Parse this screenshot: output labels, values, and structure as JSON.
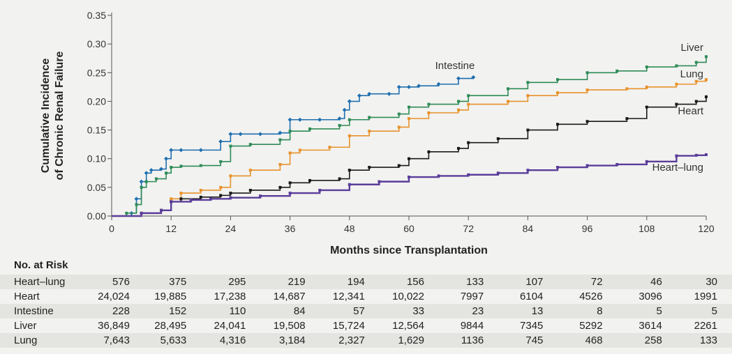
{
  "chart_data": {
    "type": "line",
    "ylabel_line1": "Cumulative Incidence",
    "ylabel_line2": "of Chronic Renal Failure",
    "xlabel": "Months since Transplantation",
    "xlim": [
      0,
      120
    ],
    "ylim": [
      0,
      0.35
    ],
    "x_ticks": [
      0,
      12,
      24,
      36,
      48,
      60,
      72,
      84,
      96,
      108,
      120
    ],
    "y_ticks": [
      "0.00",
      "0.05",
      "0.10",
      "0.15",
      "0.20",
      "0.25",
      "0.30",
      "0.35"
    ],
    "series": [
      {
        "name": "Intestine",
        "color": "#1f6fb0",
        "x": [
          0,
          4,
          5,
          6,
          7,
          8,
          10,
          11,
          12,
          14,
          18,
          22,
          24,
          26,
          30,
          34,
          36,
          38,
          42,
          46,
          47,
          48,
          50,
          52,
          56,
          58,
          60,
          62,
          66,
          70,
          73
        ],
        "y": [
          0,
          0.005,
          0.03,
          0.06,
          0.075,
          0.08,
          0.082,
          0.1,
          0.115,
          0.115,
          0.115,
          0.13,
          0.143,
          0.143,
          0.143,
          0.145,
          0.168,
          0.168,
          0.168,
          0.17,
          0.185,
          0.2,
          0.21,
          0.213,
          0.213,
          0.225,
          0.225,
          0.227,
          0.23,
          0.24,
          0.242
        ]
      },
      {
        "name": "Liver",
        "color": "#2e8b57",
        "x": [
          0,
          3,
          5,
          6,
          7,
          9,
          11,
          12,
          14,
          18,
          22,
          24,
          28,
          34,
          36,
          40,
          46,
          48,
          52,
          58,
          60,
          64,
          70,
          72,
          80,
          84,
          90,
          96,
          102,
          108,
          114,
          118,
          120
        ],
        "y": [
          0,
          0.005,
          0.02,
          0.05,
          0.06,
          0.065,
          0.075,
          0.085,
          0.087,
          0.088,
          0.095,
          0.122,
          0.125,
          0.133,
          0.148,
          0.152,
          0.158,
          0.168,
          0.172,
          0.178,
          0.19,
          0.195,
          0.2,
          0.21,
          0.222,
          0.233,
          0.238,
          0.25,
          0.253,
          0.26,
          0.262,
          0.268,
          0.278
        ]
      },
      {
        "name": "Lung",
        "color": "#e8922c",
        "x": [
          0,
          6,
          10,
          12,
          14,
          18,
          22,
          24,
          28,
          34,
          36,
          38,
          44,
          48,
          52,
          58,
          60,
          64,
          70,
          72,
          80,
          84,
          90,
          96,
          104,
          108,
          114,
          118,
          120
        ],
        "y": [
          0,
          0.005,
          0.01,
          0.03,
          0.04,
          0.045,
          0.05,
          0.07,
          0.08,
          0.09,
          0.11,
          0.115,
          0.12,
          0.14,
          0.148,
          0.155,
          0.17,
          0.18,
          0.185,
          0.195,
          0.2,
          0.21,
          0.215,
          0.22,
          0.222,
          0.225,
          0.23,
          0.235,
          0.238
        ]
      },
      {
        "name": "Heart",
        "color": "#1a1a1a",
        "x": [
          0,
          6,
          10,
          12,
          14,
          18,
          22,
          24,
          28,
          34,
          36,
          40,
          46,
          48,
          52,
          58,
          60,
          64,
          70,
          72,
          78,
          84,
          90,
          96,
          104,
          108,
          114,
          118,
          120
        ],
        "y": [
          0,
          0.005,
          0.01,
          0.025,
          0.03,
          0.033,
          0.036,
          0.04,
          0.045,
          0.05,
          0.058,
          0.062,
          0.065,
          0.08,
          0.085,
          0.088,
          0.1,
          0.112,
          0.118,
          0.128,
          0.135,
          0.15,
          0.16,
          0.165,
          0.17,
          0.19,
          0.195,
          0.2,
          0.208
        ]
      },
      {
        "name": "Heart–lung",
        "color": "#5a3d9a",
        "x": [
          0,
          6,
          10,
          12,
          16,
          20,
          24,
          30,
          36,
          42,
          48,
          54,
          60,
          66,
          72,
          78,
          84,
          90,
          96,
          102,
          108,
          114,
          118,
          120
        ],
        "y": [
          0,
          0.005,
          0.01,
          0.025,
          0.028,
          0.03,
          0.032,
          0.035,
          0.04,
          0.045,
          0.055,
          0.06,
          0.068,
          0.07,
          0.072,
          0.075,
          0.08,
          0.085,
          0.088,
          0.09,
          0.095,
          0.105,
          0.106,
          0.107
        ]
      }
    ]
  },
  "risk_table": {
    "title": "No. at Risk",
    "rows": [
      {
        "name": "Heart–lung",
        "values": [
          "576",
          "375",
          "295",
          "219",
          "194",
          "156",
          "133",
          "107",
          "72",
          "46",
          "30"
        ]
      },
      {
        "name": "Heart",
        "values": [
          "24,024",
          "19,885",
          "17,238",
          "14,687",
          "12,341",
          "10,022",
          "7997",
          "6104",
          "4526",
          "3096",
          "1991"
        ]
      },
      {
        "name": "Intestine",
        "values": [
          "228",
          "152",
          "110",
          "84",
          "57",
          "33",
          "23",
          "13",
          "8",
          "5",
          "5"
        ]
      },
      {
        "name": "Liver",
        "values": [
          "36,849",
          "28,495",
          "24,041",
          "19,508",
          "15,724",
          "12,564",
          "9844",
          "7345",
          "5292",
          "3614",
          "2261"
        ]
      },
      {
        "name": "Lung",
        "values": [
          "7,643",
          "5,633",
          "4,316",
          "3,184",
          "2,327",
          "1,629",
          "1136",
          "745",
          "468",
          "258",
          "133"
        ]
      }
    ]
  }
}
